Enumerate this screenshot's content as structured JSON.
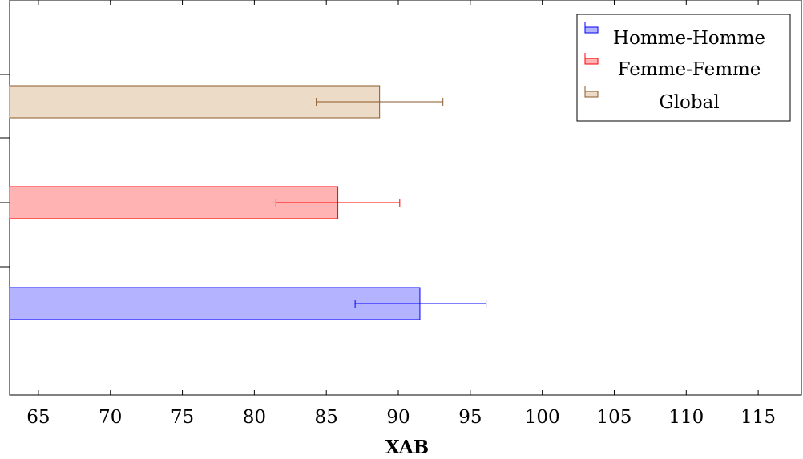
{
  "chart_data": {
    "type": "bar",
    "orientation": "horizontal",
    "xlabel": "XAB",
    "xlim": [
      63,
      118
    ],
    "xticks": [
      65,
      70,
      75,
      80,
      85,
      90,
      95,
      100,
      105,
      110,
      115
    ],
    "xtick_labels": [
      "65",
      "70",
      "75",
      "80",
      "85",
      "90",
      "95",
      "100",
      "105",
      "110",
      "115"
    ],
    "grid": false,
    "legend_position": "top-right",
    "series": [
      {
        "name": "Homme-Homme",
        "value": 91.5,
        "error_low": 87.0,
        "error_high": 96.1,
        "color": "#0000ff",
        "fill": "#b3b3ff"
      },
      {
        "name": "Femme-Femme",
        "value": 85.8,
        "error_low": 81.5,
        "error_high": 90.1,
        "color": "#ff0000",
        "fill": "#ffb3b3"
      },
      {
        "name": "Global",
        "value": 88.7,
        "error_low": 84.3,
        "error_high": 93.1,
        "color": "#8b5a2b",
        "fill": "#ecdbc6"
      }
    ]
  }
}
